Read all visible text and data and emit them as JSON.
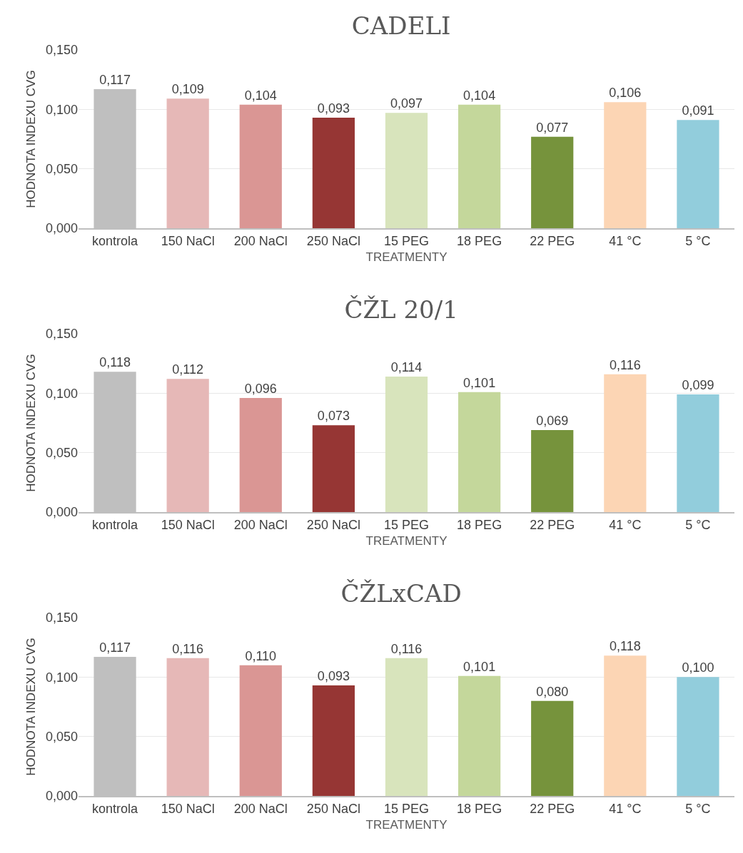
{
  "chart_data": [
    {
      "type": "bar",
      "title": "CADELI",
      "xlabel": "TREATMENTY",
      "ylabel": "HODNOTA INDEXU CVG",
      "categories": [
        "kontrola",
        "150 NaCl",
        "200 NaCl",
        "250 NaCl",
        "15 PEG",
        "18 PEG",
        "22 PEG",
        "41 °C",
        "5 °C"
      ],
      "values": [
        0.117,
        0.109,
        0.104,
        0.093,
        0.097,
        0.104,
        0.077,
        0.106,
        0.091
      ],
      "value_labels": [
        "0,117",
        "0,109",
        "0,104",
        "0,093",
        "0,097",
        "0,104",
        "0,077",
        "0,106",
        "0,091"
      ],
      "colors": [
        "#bfbfbf",
        "#e6b8b7",
        "#da9694",
        "#963634",
        "#d8e4bc",
        "#c4d79b",
        "#76933c",
        "#fcd5b4",
        "#92cddc"
      ],
      "ylim": [
        0,
        0.15
      ],
      "yticks": [
        {
          "value": 0,
          "label": "0,000"
        },
        {
          "value": 0.05,
          "label": "0,050"
        },
        {
          "value": 0.1,
          "label": "0,100"
        },
        {
          "value": 0.15,
          "label": "0,150"
        }
      ],
      "grid": "y"
    },
    {
      "type": "bar",
      "title": "ČŽL 20/1",
      "xlabel": "TREATMENTY",
      "ylabel": "HODNOTA INDEXU CVG",
      "categories": [
        "kontrola",
        "150 NaCl",
        "200 NaCl",
        "250 NaCl",
        "15 PEG",
        "18 PEG",
        "22 PEG",
        "41 °C",
        "5 °C"
      ],
      "values": [
        0.118,
        0.112,
        0.096,
        0.073,
        0.114,
        0.101,
        0.069,
        0.116,
        0.099
      ],
      "value_labels": [
        "0,118",
        "0,112",
        "0,096",
        "0,073",
        "0,114",
        "0,101",
        "0,069",
        "0,116",
        "0,099"
      ],
      "colors": [
        "#bfbfbf",
        "#e6b8b7",
        "#da9694",
        "#963634",
        "#d8e4bc",
        "#c4d79b",
        "#76933c",
        "#fcd5b4",
        "#92cddc"
      ],
      "ylim": [
        0,
        0.15
      ],
      "yticks": [
        {
          "value": 0,
          "label": "0,000"
        },
        {
          "value": 0.05,
          "label": "0,050"
        },
        {
          "value": 0.1,
          "label": "0,100"
        },
        {
          "value": 0.15,
          "label": "0,150"
        }
      ],
      "grid": "y"
    },
    {
      "type": "bar",
      "title": "ČŽLxCAD",
      "xlabel": "TREATMENTY",
      "ylabel": "HODNOTA INDEXU CVG",
      "categories": [
        "kontrola",
        "150 NaCl",
        "200 NaCl",
        "250 NaCl",
        "15 PEG",
        "18 PEG",
        "22 PEG",
        "41 °C",
        "5 °C"
      ],
      "values": [
        0.117,
        0.116,
        0.11,
        0.093,
        0.116,
        0.101,
        0.08,
        0.118,
        0.1
      ],
      "value_labels": [
        "0,117",
        "0,116",
        "0,110",
        "0,093",
        "0,116",
        "0,101",
        "0,080",
        "0,118",
        "0,100"
      ],
      "colors": [
        "#bfbfbf",
        "#e6b8b7",
        "#da9694",
        "#963634",
        "#d8e4bc",
        "#c4d79b",
        "#76933c",
        "#fcd5b4",
        "#92cddc"
      ],
      "ylim": [
        0,
        0.15
      ],
      "yticks": [
        {
          "value": 0,
          "label": "0,000"
        },
        {
          "value": 0.05,
          "label": "0,050"
        },
        {
          "value": 0.1,
          "label": "0,100"
        },
        {
          "value": 0.15,
          "label": "0,150"
        }
      ],
      "grid": "y"
    }
  ]
}
